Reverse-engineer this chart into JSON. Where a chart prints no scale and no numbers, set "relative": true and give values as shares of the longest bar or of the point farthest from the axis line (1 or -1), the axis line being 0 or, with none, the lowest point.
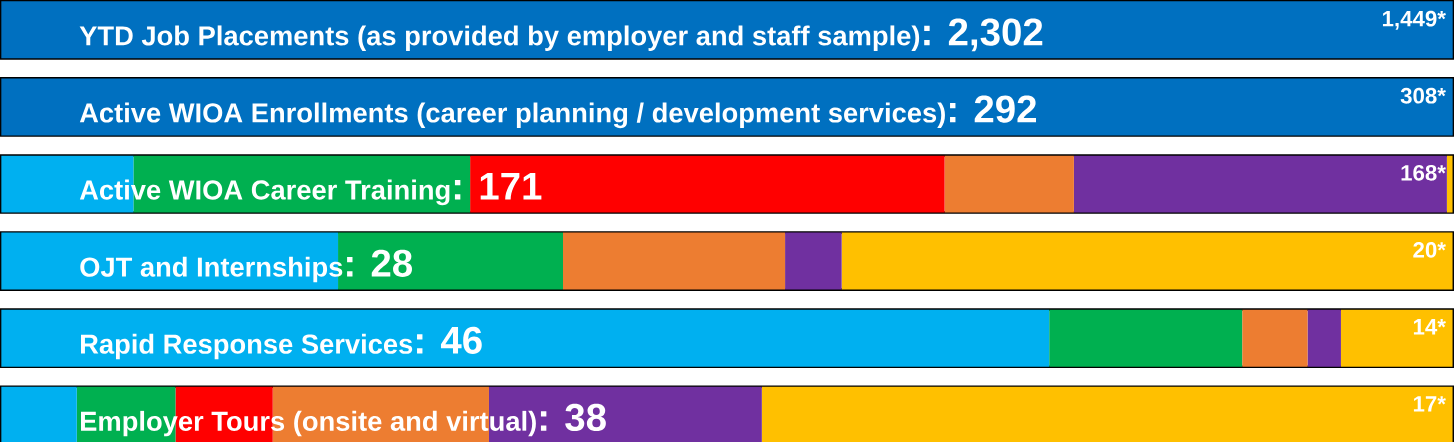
{
  "chart_data": {
    "type": "bar",
    "orientation": "horizontal",
    "stacked": true,
    "relative": true,
    "categories": [
      "YTD Job Placements (as provided by employer and staff sample)",
      "Active WIOA Enrollments (career planning / development services)",
      "Active WIOA Career Training",
      "OJT and Internships",
      "Rapid Response Services",
      "Employer Tours (onsite and virtual)"
    ],
    "series": [
      {
        "color": "#0070c0",
        "values": [
          1,
          1,
          null,
          null,
          null,
          null
        ]
      },
      {
        "color": "#00b0f0",
        "values": [
          null,
          null,
          0.091,
          0.232,
          0.722,
          0.052
        ]
      },
      {
        "color": "#00b050",
        "values": [
          null,
          null,
          0.232,
          0.155,
          0.133,
          0.068
        ]
      },
      {
        "color": "#ff0000",
        "values": [
          null,
          null,
          0.327,
          null,
          null,
          0.067
        ]
      },
      {
        "color": "#ed7d31",
        "values": [
          null,
          null,
          0.089,
          0.153,
          0.045,
          0.149
        ]
      },
      {
        "color": "#7030a0",
        "values": [
          null,
          null,
          0.257,
          0.039,
          0.023,
          0.188
        ]
      },
      {
        "color": "#ffc000",
        "values": [
          null,
          null,
          0.004,
          0.421,
          0.077,
          0.476
        ]
      }
    ],
    "annotations": [
      ": 2,302",
      "1,449*",
      ": 292",
      "308*",
      ": 171",
      "168*",
      ": 28",
      "20*",
      ": 46",
      "14*",
      ": 38",
      "17*"
    ]
  }
}
